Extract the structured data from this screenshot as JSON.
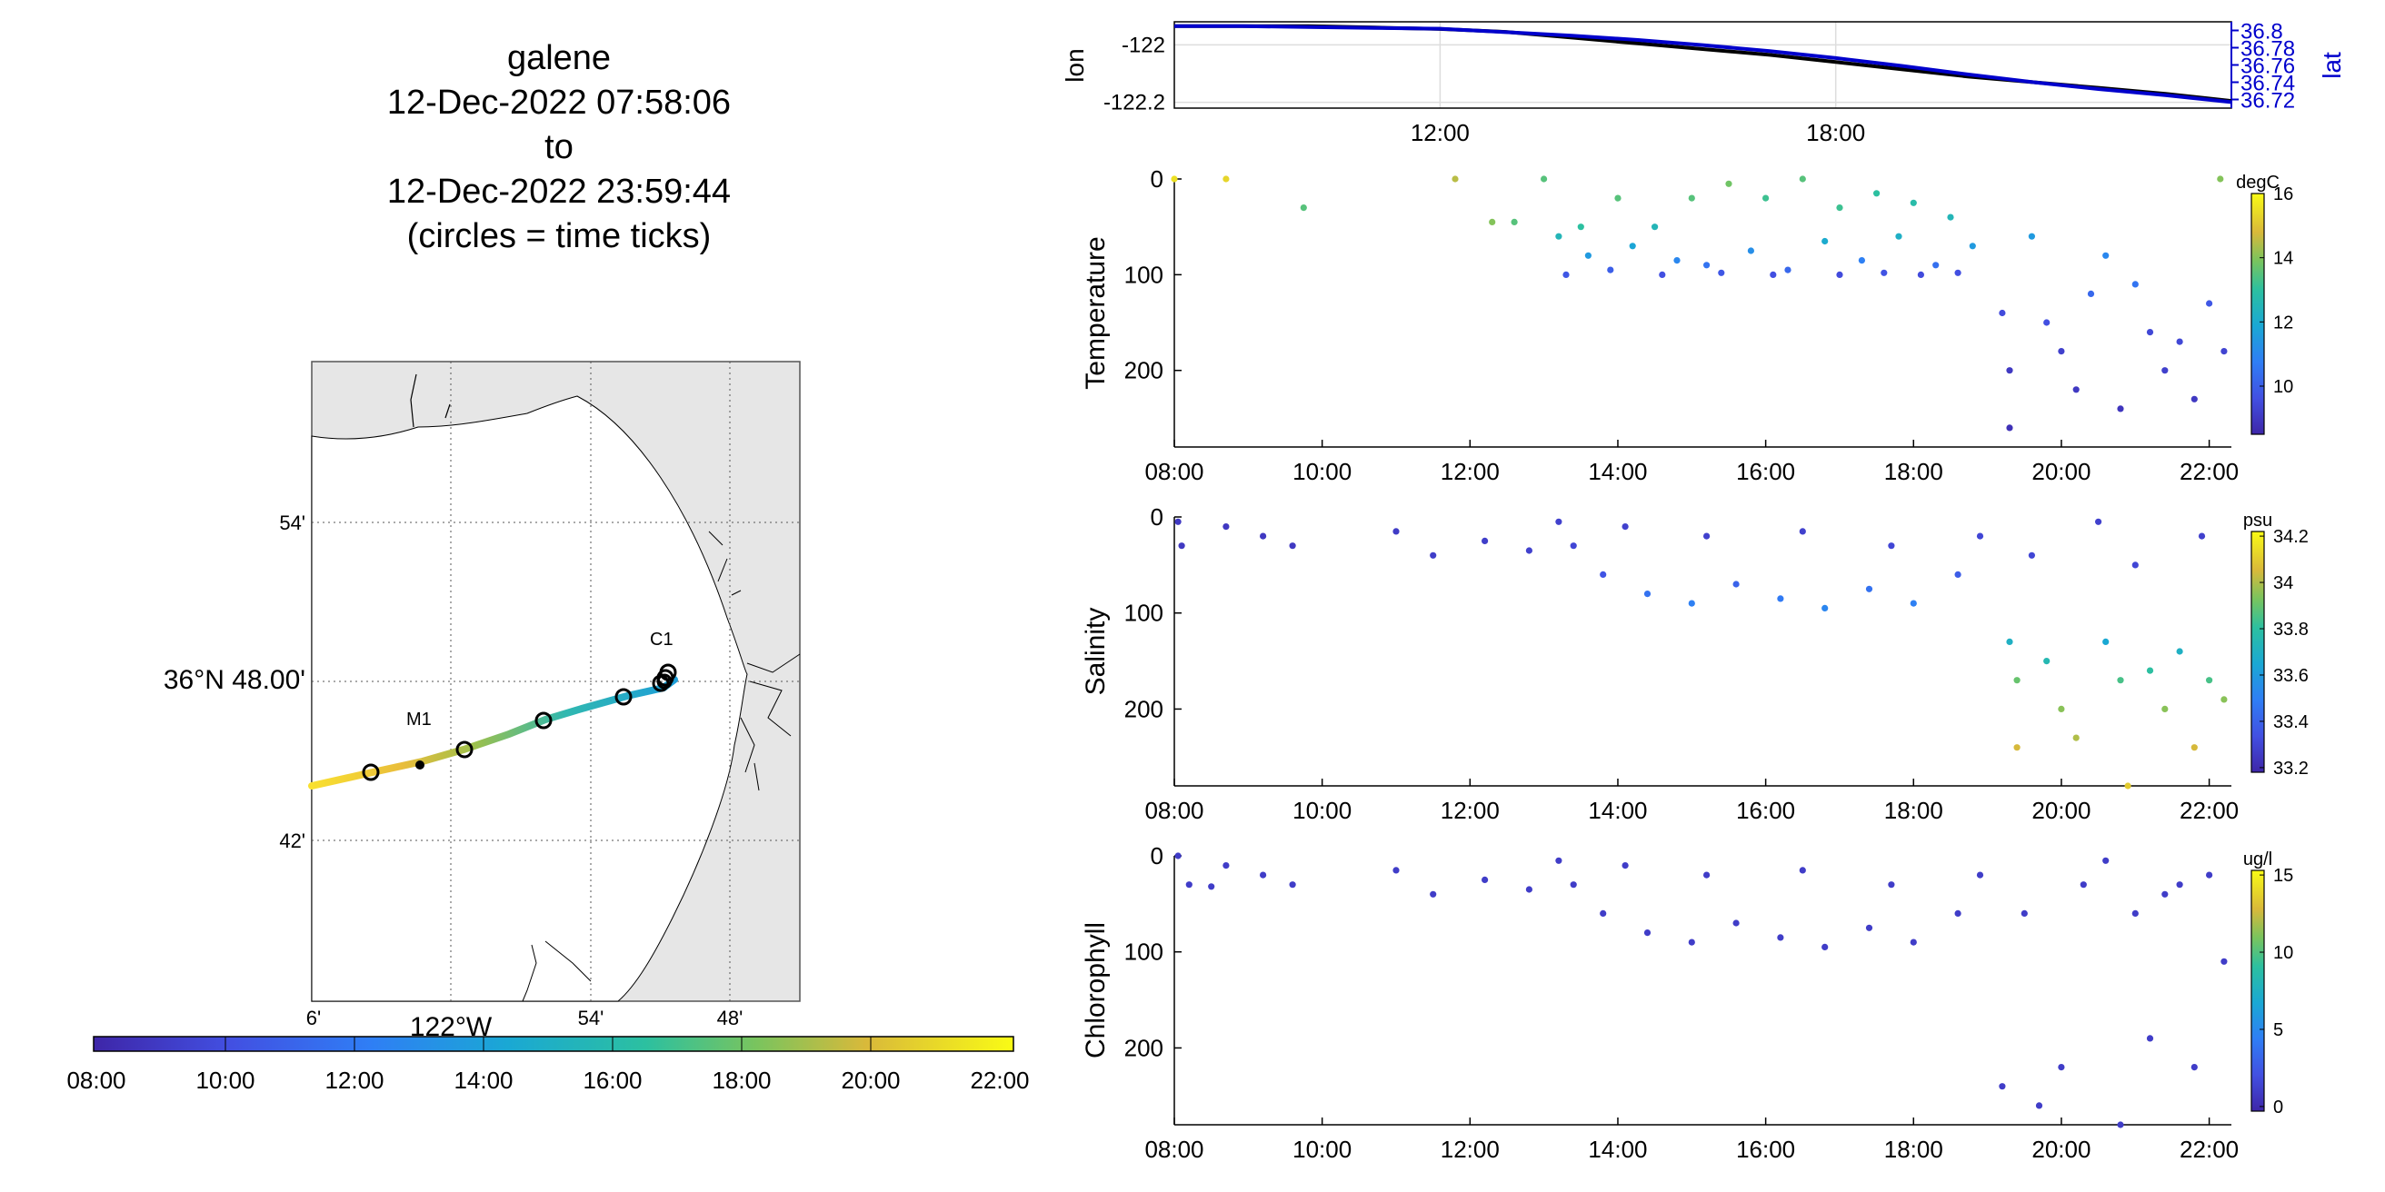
{
  "title_lines": [
    "galene",
    "12-Dec-2022 07:58:06",
    "to",
    "12-Dec-2022 23:59:44",
    "(circles = time ticks)"
  ],
  "map": {
    "lat_ticks": [
      "54'",
      "36°N 48.00'",
      "42'"
    ],
    "lon_ticks": [
      "6'",
      "122°W",
      "54'",
      "48'"
    ],
    "stations": [
      "M1",
      "C1"
    ],
    "colorbar_ticks": [
      "08:00",
      "10:00",
      "12:00",
      "14:00",
      "16:00",
      "18:00",
      "20:00",
      "22:00"
    ],
    "colors": {
      "land": "#e6e6e6",
      "water": "#ffffff",
      "coast": "#000000"
    }
  },
  "chart_data": [
    {
      "type": "line",
      "name": "position",
      "x_ticks": [
        "12:00",
        "18:00"
      ],
      "left_axis": {
        "label": "lon",
        "ticks": [
          "-122",
          "-122.2"
        ],
        "ylim": [
          -122.22,
          -121.92
        ]
      },
      "right_axis": {
        "label": "lat",
        "ticks": [
          "36.8",
          "36.78",
          "36.76",
          "36.74",
          "36.72"
        ],
        "ylim": [
          36.71,
          36.81
        ],
        "color": "#0000cc"
      },
      "xlim": [
        7.97,
        24.0
      ],
      "series": [
        {
          "name": "lon",
          "color": "#000000",
          "x": [
            7.97,
            9,
            10,
            11,
            12,
            13,
            14,
            15,
            16,
            17,
            18,
            19,
            20,
            21,
            22,
            23,
            24
          ],
          "y": [
            -121.935,
            -121.935,
            -121.935,
            -121.94,
            -121.945,
            -121.955,
            -121.975,
            -121.995,
            -122.015,
            -122.035,
            -122.06,
            -122.085,
            -122.11,
            -122.13,
            -122.15,
            -122.17,
            -122.195
          ]
        },
        {
          "name": "lat",
          "color": "#0000cc",
          "x": [
            7.97,
            9,
            10,
            11,
            12,
            13,
            14,
            15,
            16,
            17,
            18,
            19,
            20,
            21,
            22,
            23,
            24
          ],
          "y": [
            36.805,
            36.805,
            36.804,
            36.803,
            36.802,
            36.798,
            36.794,
            36.789,
            36.783,
            36.776,
            36.768,
            36.759,
            36.749,
            36.74,
            36.732,
            36.725,
            36.717
          ]
        }
      ]
    },
    {
      "type": "scatter",
      "name": "temperature",
      "ylabel": "Temperature",
      "units": "degC",
      "x_ticks": [
        "08:00",
        "10:00",
        "12:00",
        "14:00",
        "16:00",
        "18:00",
        "20:00",
        "22:00"
      ],
      "y_ticks": [
        "0",
        "100",
        "200"
      ],
      "xlim": [
        8.0,
        22.3
      ],
      "ylim": [
        0,
        280
      ],
      "colorbar": {
        "min": 8.5,
        "max": 16,
        "ticks": [
          "16",
          "14",
          "12",
          "10"
        ]
      },
      "points": [
        [
          8.0,
          0,
          15.5
        ],
        [
          8.7,
          0,
          15.3
        ],
        [
          9.75,
          30,
          13.5
        ],
        [
          11.8,
          0,
          14.5
        ],
        [
          12.3,
          45,
          14.0
        ],
        [
          12.6,
          45,
          13.5
        ],
        [
          13.0,
          0,
          13.5
        ],
        [
          13.5,
          50,
          13.0
        ],
        [
          14.0,
          20,
          13.5
        ],
        [
          14.5,
          50,
          12.5
        ],
        [
          15.0,
          20,
          13.5
        ],
        [
          15.5,
          5,
          13.8
        ],
        [
          16.0,
          20,
          13.2
        ],
        [
          16.5,
          0,
          13.5
        ],
        [
          17.0,
          30,
          13.2
        ],
        [
          17.5,
          15,
          13.0
        ],
        [
          18.0,
          25,
          12.8
        ],
        [
          18.5,
          40,
          12.5
        ],
        [
          13.2,
          60,
          12.5
        ],
        [
          13.6,
          80,
          11.5
        ],
        [
          14.2,
          70,
          11.8
        ],
        [
          14.8,
          85,
          11.0
        ],
        [
          15.2,
          90,
          10.5
        ],
        [
          15.8,
          75,
          11.2
        ],
        [
          16.3,
          95,
          10.2
        ],
        [
          16.8,
          65,
          12.0
        ],
        [
          17.3,
          85,
          10.8
        ],
        [
          17.8,
          60,
          12.2
        ],
        [
          18.3,
          90,
          10.4
        ],
        [
          18.8,
          70,
          11.5
        ],
        [
          13.3,
          100,
          9.8
        ],
        [
          13.9,
          95,
          10.0
        ],
        [
          14.6,
          100,
          9.6
        ],
        [
          15.4,
          98,
          9.8
        ],
        [
          16.1,
          100,
          9.6
        ],
        [
          17.0,
          100,
          9.5
        ],
        [
          17.6,
          98,
          9.7
        ],
        [
          18.1,
          100,
          9.5
        ],
        [
          18.6,
          98,
          9.6
        ],
        [
          19.2,
          140,
          9.5
        ],
        [
          19.3,
          200,
          9.0
        ],
        [
          19.3,
          260,
          8.8
        ],
        [
          19.6,
          60,
          11.5
        ],
        [
          19.8,
          150,
          9.6
        ],
        [
          20.0,
          180,
          9.2
        ],
        [
          20.2,
          220,
          9.0
        ],
        [
          20.4,
          120,
          10.2
        ],
        [
          20.6,
          80,
          11.0
        ],
        [
          20.8,
          240,
          8.9
        ],
        [
          21.0,
          110,
          10.5
        ],
        [
          21.2,
          160,
          9.4
        ],
        [
          21.4,
          200,
          9.2
        ],
        [
          21.6,
          170,
          9.4
        ],
        [
          21.8,
          230,
          9.0
        ],
        [
          22.0,
          130,
          9.8
        ],
        [
          22.15,
          0,
          14.0
        ],
        [
          22.2,
          180,
          9.3
        ]
      ]
    },
    {
      "type": "scatter",
      "name": "salinity",
      "ylabel": "Salinity",
      "units": "psu",
      "x_ticks": [
        "08:00",
        "10:00",
        "12:00",
        "14:00",
        "16:00",
        "18:00",
        "20:00",
        "22:00"
      ],
      "y_ticks": [
        "0",
        "100",
        "200"
      ],
      "xlim": [
        8.0,
        22.3
      ],
      "ylim": [
        0,
        280
      ],
      "colorbar": {
        "min": 33.18,
        "max": 34.22,
        "ticks": [
          "34.2",
          "34",
          "33.8",
          "33.6",
          "33.4",
          "33.2"
        ]
      },
      "points": [
        [
          8.05,
          5,
          33.25
        ],
        [
          8.1,
          30,
          33.25
        ],
        [
          8.7,
          10,
          33.25
        ],
        [
          9.2,
          20,
          33.25
        ],
        [
          9.6,
          30,
          33.25
        ],
        [
          11.0,
          15,
          33.26
        ],
        [
          11.5,
          40,
          33.27
        ],
        [
          12.2,
          25,
          33.27
        ],
        [
          12.8,
          35,
          33.28
        ],
        [
          13.2,
          5,
          33.28
        ],
        [
          13.8,
          60,
          33.35
        ],
        [
          14.4,
          80,
          33.45
        ],
        [
          15.0,
          90,
          33.5
        ],
        [
          15.6,
          70,
          33.4
        ],
        [
          16.2,
          85,
          33.48
        ],
        [
          16.8,
          95,
          33.52
        ],
        [
          17.4,
          75,
          33.45
        ],
        [
          18.0,
          90,
          33.5
        ],
        [
          18.6,
          60,
          33.38
        ],
        [
          13.4,
          30,
          33.3
        ],
        [
          14.1,
          10,
          33.28
        ],
        [
          15.2,
          20,
          33.28
        ],
        [
          16.5,
          15,
          33.28
        ],
        [
          17.7,
          30,
          33.3
        ],
        [
          18.9,
          20,
          33.3
        ],
        [
          19.3,
          130,
          33.7
        ],
        [
          19.4,
          170,
          33.9
        ],
        [
          19.4,
          240,
          34.05
        ],
        [
          19.8,
          150,
          33.75
        ],
        [
          20.0,
          200,
          33.95
        ],
        [
          20.2,
          230,
          34.0
        ],
        [
          20.6,
          130,
          33.65
        ],
        [
          20.8,
          170,
          33.85
        ],
        [
          20.9,
          280,
          34.1
        ],
        [
          21.2,
          160,
          33.8
        ],
        [
          21.4,
          200,
          33.95
        ],
        [
          21.6,
          140,
          33.7
        ],
        [
          21.8,
          240,
          34.05
        ],
        [
          22.0,
          170,
          33.85
        ],
        [
          22.2,
          190,
          33.95
        ],
        [
          19.6,
          40,
          33.3
        ],
        [
          20.5,
          5,
          33.28
        ],
        [
          21.0,
          50,
          33.3
        ],
        [
          21.9,
          20,
          33.28
        ]
      ]
    },
    {
      "type": "scatter",
      "name": "chlorophyll",
      "ylabel": "Chlorophyll",
      "units": "ug/l",
      "x_ticks": [
        "08:00",
        "10:00",
        "12:00",
        "14:00",
        "16:00",
        "18:00",
        "20:00",
        "22:00"
      ],
      "y_ticks": [
        "0",
        "100",
        "200"
      ],
      "xlim": [
        8.0,
        22.3
      ],
      "ylim": [
        0,
        280
      ],
      "colorbar": {
        "min": -0.3,
        "max": 15.3,
        "ticks": [
          "15",
          "10",
          "5",
          "0"
        ]
      },
      "points": [
        [
          8.05,
          0,
          1.0
        ],
        [
          8.2,
          30,
          1.0
        ],
        [
          8.5,
          32,
          1.0
        ],
        [
          8.7,
          10,
          1.0
        ],
        [
          9.2,
          20,
          1.0
        ],
        [
          9.6,
          30,
          1.0
        ],
        [
          11.0,
          15,
          1.0
        ],
        [
          11.5,
          40,
          1.0
        ],
        [
          12.2,
          25,
          1.0
        ],
        [
          12.8,
          35,
          1.0
        ],
        [
          13.2,
          5,
          1.0
        ],
        [
          13.8,
          60,
          1.0
        ],
        [
          14.4,
          80,
          1.0
        ],
        [
          15.0,
          90,
          1.0
        ],
        [
          15.6,
          70,
          1.0
        ],
        [
          16.2,
          85,
          1.0
        ],
        [
          16.8,
          95,
          1.0
        ],
        [
          17.4,
          75,
          1.0
        ],
        [
          18.0,
          90,
          1.0
        ],
        [
          18.6,
          60,
          1.0
        ],
        [
          13.4,
          30,
          1.0
        ],
        [
          14.1,
          10,
          1.0
        ],
        [
          15.2,
          20,
          1.0
        ],
        [
          16.5,
          15,
          1.0
        ],
        [
          17.7,
          30,
          1.0
        ],
        [
          18.9,
          20,
          1.0
        ],
        [
          19.2,
          240,
          1.0
        ],
        [
          19.5,
          60,
          1.0
        ],
        [
          19.7,
          260,
          1.0
        ],
        [
          20.0,
          220,
          1.0
        ],
        [
          20.3,
          30,
          1.0
        ],
        [
          20.6,
          5,
          1.0
        ],
        [
          20.8,
          280,
          1.0
        ],
        [
          21.0,
          60,
          1.0
        ],
        [
          21.2,
          190,
          1.0
        ],
        [
          21.4,
          40,
          1.0
        ],
        [
          21.6,
          30,
          1.0
        ],
        [
          21.8,
          220,
          1.0
        ],
        [
          22.0,
          20,
          1.0
        ],
        [
          22.2,
          110,
          1.0
        ]
      ]
    }
  ]
}
